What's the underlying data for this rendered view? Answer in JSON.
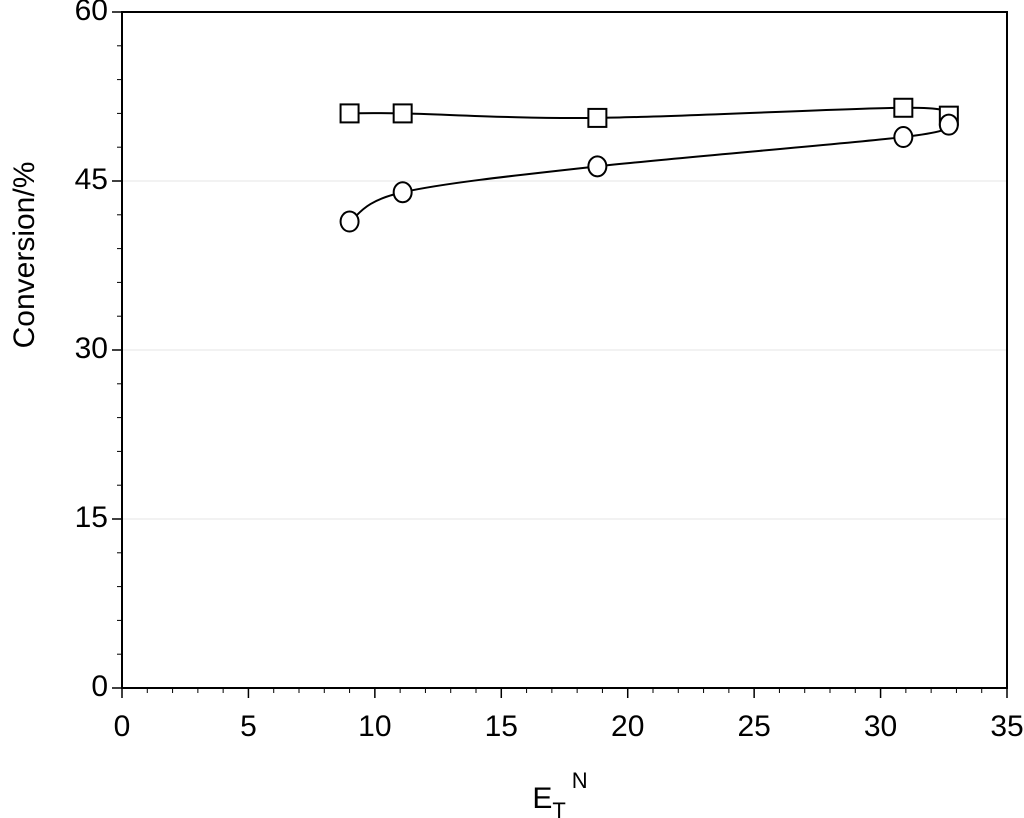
{
  "chart_data": {
    "type": "scatter",
    "x_label": {
      "main": "E",
      "subscript": "T",
      "superscript": "N"
    },
    "y_label": "Conversion/%",
    "xlim": [
      0,
      35
    ],
    "xticks": [
      0,
      5,
      10,
      15,
      20,
      25,
      30,
      35
    ],
    "xminorticks": [
      1,
      2,
      3,
      4,
      6,
      7,
      8,
      9,
      11,
      12,
      13,
      14,
      16,
      17,
      18,
      19,
      21,
      22,
      23,
      24,
      26,
      27,
      28,
      29,
      31,
      32,
      33,
      34
    ],
    "ylim": [
      0,
      60
    ],
    "yticks": [
      0,
      15,
      30,
      45,
      60
    ],
    "yminorticks": [
      3,
      6,
      9,
      12,
      18,
      21,
      24,
      27,
      33,
      36,
      39,
      42,
      48,
      51,
      54,
      57
    ],
    "grid": true,
    "series": [
      {
        "marker": "square",
        "color": "#000000",
        "x": [
          9.0,
          11.1,
          18.8,
          30.9,
          32.7
        ],
        "values": [
          51.0,
          51.0,
          50.6,
          51.5,
          50.8
        ]
      },
      {
        "marker": "circle",
        "color": "#000000",
        "x": [
          9.0,
          11.1,
          18.8,
          30.9,
          32.7
        ],
        "values": [
          41.4,
          44.0,
          46.3,
          48.9,
          50.0
        ]
      }
    ]
  }
}
